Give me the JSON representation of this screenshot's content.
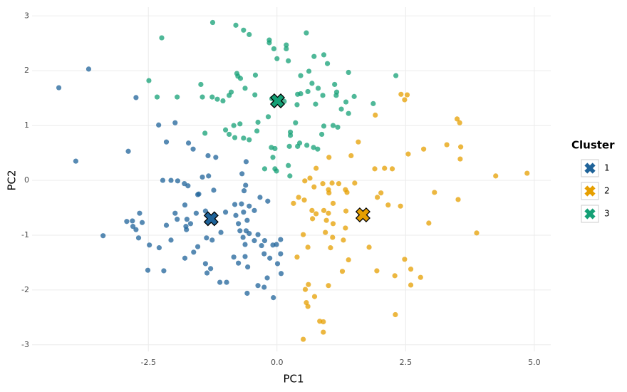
{
  "chart_data": {
    "type": "scatter",
    "x_label": "PC1",
    "y_label": "PC2",
    "legend_title": "Cluster",
    "legend_position": "right",
    "grid": true,
    "xlim": [
      -4.76,
      5.32
    ],
    "ylim": [
      -3.12,
      3.16
    ],
    "xticks": [
      -2.5,
      {
        "value": 0,
        "label": "0.0"
      },
      2.5,
      {
        "value": 5,
        "label": "5.0"
      }
    ],
    "yticks": [
      -3,
      -2,
      -1,
      0,
      1,
      2,
      3
    ],
    "series": [
      {
        "name": "1",
        "color": "#1f6399",
        "centroid_x": -1.28,
        "centroid_y": -0.7,
        "x": [
          -4.24,
          -3.66,
          -3.91,
          -2.74,
          -2.89,
          -2.3,
          -1.98,
          -2.15,
          -1.72,
          -1.63,
          -1.34,
          -1.19,
          -1.45,
          -1.33,
          -2.22,
          -2.06,
          -1.93,
          -1.8,
          -1.73,
          -1.52,
          -1.23,
          -0.6,
          -0.68,
          -0.61,
          -0.64,
          -0.33,
          -0.18,
          -1.79,
          -0.82,
          -0.69,
          -0.54,
          -0.44,
          -1.39,
          -1.57,
          -1.98,
          -2.67,
          -2.92,
          -2.81,
          -2.8,
          -2.74,
          -2.62,
          -1.94,
          -1.75,
          -1.77,
          -1.68,
          -2.15,
          -1.76,
          -1.0,
          -0.8,
          -0.65,
          -0.58,
          -0.75,
          -1.09,
          -0.72,
          -0.6,
          -0.54,
          -0.66,
          -0.37,
          -0.24,
          0.07,
          -0.08,
          -0.01,
          -0.44,
          -0.62,
          -0.3,
          0.07,
          -0.25,
          -0.14,
          -0.84,
          -0.62,
          -1.26,
          -1.37,
          -1.54,
          -1.62,
          -1.79,
          -2.06,
          -2.29,
          -2.48,
          -2.69,
          -3.38,
          -2.51,
          -2.2,
          -1.39,
          -1.29,
          -1.36,
          -0.75,
          -0.57,
          0.01,
          0.08,
          -0.19,
          -1.11,
          -0.98,
          -0.37,
          -0.25,
          -0.58,
          -0.07,
          -1.54
        ],
        "y": [
          1.69,
          2.03,
          0.35,
          1.51,
          0.53,
          1.01,
          1.05,
          0.7,
          0.68,
          0.57,
          0.45,
          0.42,
          0.06,
          0.08,
          0.0,
          0.0,
          -0.01,
          -0.06,
          -0.1,
          -0.25,
          -0.18,
          0.34,
          0.12,
          -0.09,
          -0.19,
          -0.31,
          -0.38,
          -0.45,
          -0.44,
          -0.43,
          -0.47,
          -0.55,
          -0.56,
          -0.6,
          -0.6,
          -0.6,
          -0.75,
          -0.74,
          -0.84,
          -0.9,
          -0.77,
          -0.71,
          -0.71,
          -0.84,
          -0.79,
          -0.82,
          -0.9,
          -0.58,
          -0.64,
          -0.58,
          -0.73,
          -0.79,
          -0.95,
          -0.92,
          -0.92,
          -0.97,
          -1.04,
          -0.99,
          -1.1,
          -1.08,
          -1.18,
          -1.17,
          -1.1,
          -1.17,
          -1.19,
          -1.34,
          -1.34,
          -1.42,
          -1.4,
          -1.39,
          -1.09,
          -1.05,
          -1.21,
          -1.31,
          -1.42,
          -1.09,
          -1.23,
          -1.18,
          -1.05,
          -1.01,
          -1.64,
          -1.65,
          -1.52,
          -1.61,
          -1.69,
          -1.51,
          -1.58,
          -1.52,
          -1.7,
          -1.78,
          -1.86,
          -1.86,
          -1.92,
          -1.95,
          -2.06,
          -2.14,
          -0.26
        ]
      },
      {
        "name": "2",
        "color": "#e69f00",
        "centroid_x": 1.67,
        "centroid_y": -0.63,
        "x": [
          2.41,
          2.53,
          2.48,
          1.91,
          3.5,
          3.55,
          1.58,
          2.85,
          2.55,
          3.3,
          3.57,
          3.56,
          1.01,
          1.44,
          1.9,
          2.09,
          2.24,
          4.25,
          4.86,
          0.76,
          0.64,
          0.54,
          0.89,
          1.07,
          1.0,
          0.72,
          1.01,
          1.2,
          1.33,
          1.36,
          1.51,
          2.02,
          1.95,
          3.06,
          3.52,
          0.42,
          0.32,
          0.53,
          1.09,
          2.16,
          2.4,
          0.68,
          0.76,
          0.91,
          1.0,
          0.69,
          0.96,
          1.34,
          1.09,
          1.33,
          2.95,
          3.88,
          0.51,
          0.94,
          1.08,
          1.29,
          0.6,
          1.04,
          1.79,
          0.39,
          1.39,
          2.48,
          1.27,
          1.94,
          2.6,
          2.29,
          2.79,
          0.61,
          0.55,
          1.0,
          2.6,
          0.73,
          0.57,
          0.6,
          0.83,
          0.9,
          0.9,
          2.3,
          0.51
        ],
        "y": [
          1.57,
          1.56,
          1.47,
          1.19,
          1.12,
          1.05,
          0.7,
          0.57,
          0.48,
          0.65,
          0.61,
          0.39,
          0.42,
          0.45,
          0.21,
          0.22,
          0.21,
          0.08,
          0.13,
          0.22,
          0.04,
          -0.01,
          -0.06,
          -0.05,
          -0.17,
          -0.12,
          -0.23,
          -0.06,
          -0.17,
          -0.22,
          -0.05,
          -0.23,
          -0.31,
          -0.22,
          -0.35,
          -0.31,
          -0.42,
          -0.36,
          -0.42,
          -0.45,
          -0.47,
          -0.55,
          -0.61,
          -0.55,
          -0.6,
          -0.7,
          -0.73,
          -0.56,
          -0.79,
          -0.87,
          -0.78,
          -0.96,
          -0.99,
          -0.95,
          -1.04,
          -1.09,
          -1.22,
          -1.23,
          -1.22,
          -1.4,
          -1.45,
          -1.44,
          -1.66,
          -1.65,
          -1.62,
          -1.74,
          -1.77,
          -1.9,
          -1.99,
          -1.92,
          -1.91,
          -2.12,
          -2.23,
          -2.3,
          -2.57,
          -2.58,
          -2.77,
          -2.45,
          -2.9
        ]
      },
      {
        "name": "3",
        "color": "#14a075",
        "centroid_x": 0.01,
        "centroid_y": 1.45,
        "x": [
          -1.25,
          -0.8,
          -0.65,
          -0.54,
          -2.24,
          -0.15,
          -0.15,
          0.18,
          0.18,
          0.57,
          -0.06,
          0.0,
          0.22,
          0.72,
          0.91,
          0.98,
          -2.49,
          -0.78,
          -0.76,
          -0.71,
          -0.42,
          -1.48,
          -0.62,
          -2.33,
          -1.94,
          -1.45,
          -1.26,
          -1.16,
          -1.05,
          -0.89,
          -0.93,
          -0.43,
          0.46,
          0.62,
          1.39,
          2.31,
          0.68,
          1.12,
          0.4,
          0.46,
          0.6,
          0.8,
          0.89,
          1.16,
          1.15,
          1.5,
          1.34,
          1.87,
          -0.1,
          0.14,
          0.39,
          0.75,
          1.25,
          1.39,
          -0.17,
          -1.4,
          -1.0,
          -0.93,
          -0.84,
          -0.72,
          -0.82,
          -0.65,
          -0.54,
          -0.37,
          -0.39,
          0.36,
          0.91,
          1.09,
          1.18,
          0.26,
          0.26,
          0.87,
          -0.11,
          -0.04,
          0.24,
          0.4,
          0.44,
          0.58,
          0.71,
          0.79,
          -0.08,
          0.22,
          -0.24,
          -0.04,
          -0.01,
          0.25
        ],
        "y": [
          2.88,
          2.83,
          2.74,
          2.66,
          2.6,
          2.56,
          2.51,
          2.47,
          2.4,
          2.69,
          2.4,
          2.22,
          2.18,
          2.26,
          2.29,
          2.13,
          1.82,
          1.95,
          1.9,
          1.86,
          1.92,
          1.75,
          1.68,
          1.52,
          1.52,
          1.52,
          1.52,
          1.48,
          1.45,
          1.61,
          1.55,
          1.56,
          1.91,
          1.99,
          1.97,
          1.91,
          1.77,
          1.75,
          1.57,
          1.58,
          1.62,
          1.68,
          1.55,
          1.61,
          1.55,
          1.53,
          1.43,
          1.4,
          1.49,
          1.44,
          1.38,
          1.39,
          1.3,
          1.22,
          1.16,
          0.86,
          0.92,
          0.84,
          1.0,
          1.03,
          0.78,
          0.77,
          0.74,
          1.06,
          0.9,
          1.05,
          0.99,
          1.0,
          0.97,
          0.88,
          0.82,
          0.84,
          0.6,
          0.58,
          0.62,
          0.62,
          0.68,
          0.64,
          0.6,
          0.57,
          0.42,
          0.27,
          0.21,
          0.21,
          0.17,
          0.08
        ]
      }
    ]
  }
}
